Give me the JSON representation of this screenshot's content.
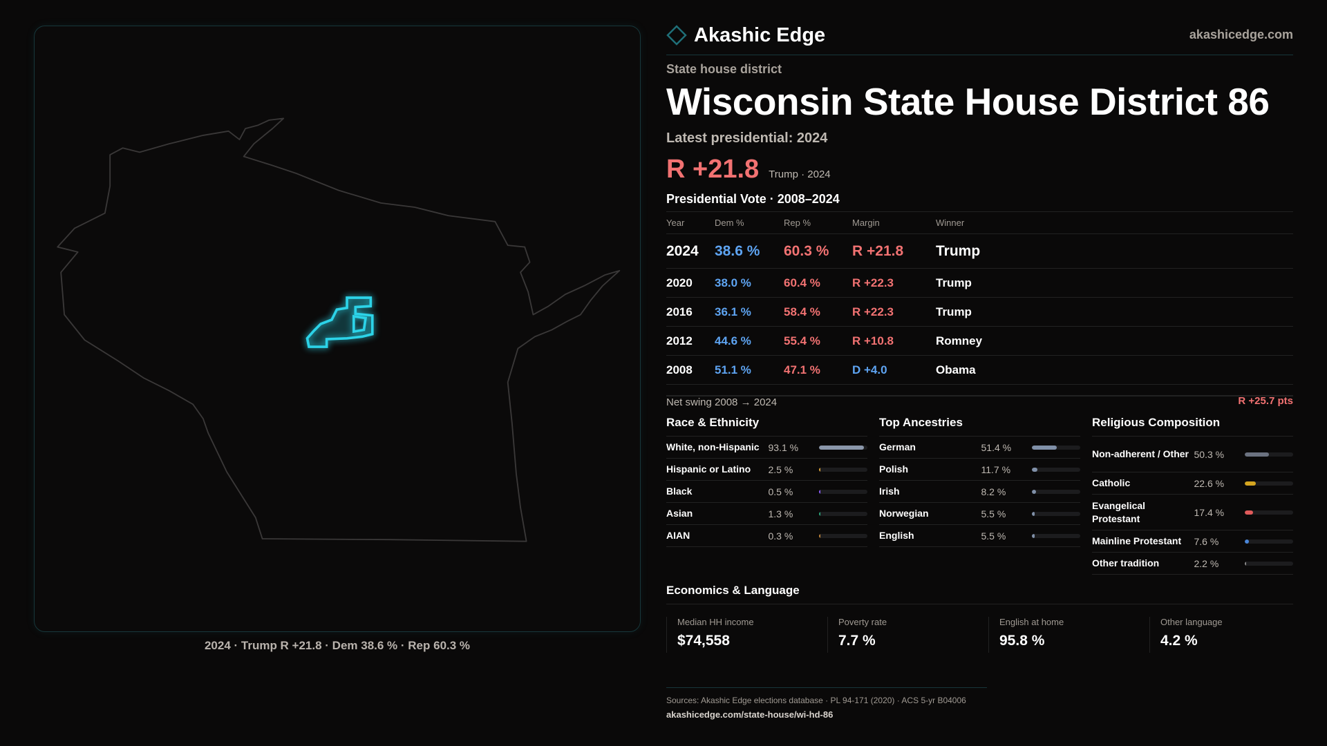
{
  "brand": {
    "name": "Akashic Edge",
    "site": "akashicedge.com",
    "accent": "#2cd3e8"
  },
  "map": {
    "caption": "2024 · Trump R +21.8 · Dem 38.6 % · Rep 60.3 %",
    "state": "Wisconsin",
    "highlight_color": "#2cd3e8"
  },
  "header": {
    "kind": "State house district",
    "title": "Wisconsin State House District 86",
    "latest": "Latest presidential: 2024",
    "margin": "R +21.8",
    "margin_sub": "Trump · 2024"
  },
  "colors": {
    "dem": "#5ea4f2",
    "rep": "#f27272"
  },
  "vote": {
    "title": "Presidential Vote · 2008–2024",
    "columns": [
      "Year",
      "Dem %",
      "Rep %",
      "Margin",
      "Winner"
    ],
    "rows": [
      {
        "year": "2024",
        "dem": "38.6 %",
        "rep": "60.3 %",
        "margin": "R +21.8",
        "party": "rep",
        "winner": "Trump"
      },
      {
        "year": "2020",
        "dem": "38.0 %",
        "rep": "60.4 %",
        "margin": "R +22.3",
        "party": "rep",
        "winner": "Trump"
      },
      {
        "year": "2016",
        "dem": "36.1 %",
        "rep": "58.4 %",
        "margin": "R +22.3",
        "party": "rep",
        "winner": "Trump"
      },
      {
        "year": "2012",
        "dem": "44.6 %",
        "rep": "55.4 %",
        "margin": "R +10.8",
        "party": "rep",
        "winner": "Romney"
      },
      {
        "year": "2008",
        "dem": "51.1 %",
        "rep": "47.1 %",
        "margin": "D +4.0",
        "party": "dem",
        "winner": "Obama"
      }
    ],
    "swing_label": "Net swing 2008 → 2024",
    "swing_value": "R +25.7 pts"
  },
  "sections": [
    {
      "title": "Race & Ethnicity",
      "items": [
        {
          "label": "White, non-Hispanic",
          "value": "93.1 %",
          "pct": 93.1,
          "color": "#8b97aa"
        },
        {
          "label": "Hispanic or Latino",
          "value": "2.5 %",
          "pct": 2.5,
          "color": "#d9a13a"
        },
        {
          "label": "Black",
          "value": "0.5 %",
          "pct": 0.5,
          "color": "#8b5cf6"
        },
        {
          "label": "Asian",
          "value": "1.3 %",
          "pct": 1.3,
          "color": "#2aa57a"
        },
        {
          "label": "AIAN",
          "value": "0.3 %",
          "pct": 0.3,
          "color": "#c0843a"
        }
      ]
    },
    {
      "title": "Top Ancestries",
      "items": [
        {
          "label": "German",
          "value": "51.4 %",
          "pct": 51.4,
          "color": "#8090a8"
        },
        {
          "label": "Polish",
          "value": "11.7 %",
          "pct": 11.7,
          "color": "#8090a8"
        },
        {
          "label": "Irish",
          "value": "8.2 %",
          "pct": 8.2,
          "color": "#8090a8"
        },
        {
          "label": "Norwegian",
          "value": "5.5 %",
          "pct": 5.5,
          "color": "#8090a8"
        },
        {
          "label": "English",
          "value": "5.5 %",
          "pct": 5.5,
          "color": "#8090a8"
        }
      ]
    },
    {
      "title": "Religious Composition",
      "items": [
        {
          "label": "Non-adherent / Other",
          "value": "50.3 %",
          "pct": 50.3,
          "color": "#6b7280"
        },
        {
          "label": "Catholic",
          "value": "22.6 %",
          "pct": 22.6,
          "color": "#d4a520"
        },
        {
          "label": "Evangelical Protestant",
          "value": "17.4 %",
          "pct": 17.4,
          "color": "#e05a5a"
        },
        {
          "label": "Mainline Protestant",
          "value": "7.6 %",
          "pct": 7.6,
          "color": "#4a86d9"
        },
        {
          "label": "Other tradition",
          "value": "2.2 %",
          "pct": 2.2,
          "color": "#8a8a8a"
        }
      ]
    }
  ],
  "economics": {
    "title": "Economics & Language",
    "cards": [
      {
        "label": "Median HH income",
        "value": "$74,558"
      },
      {
        "label": "Poverty rate",
        "value": "7.7 %"
      },
      {
        "label": "English at home",
        "value": "95.8 %"
      },
      {
        "label": "Other language",
        "value": "4.2 %"
      }
    ]
  },
  "footer": {
    "sources": "Sources: Akashic Edge elections database · PL 94-171 (2020) · ACS 5-yr B04006",
    "url": "akashicedge.com/state-house/wi-hd-86"
  }
}
